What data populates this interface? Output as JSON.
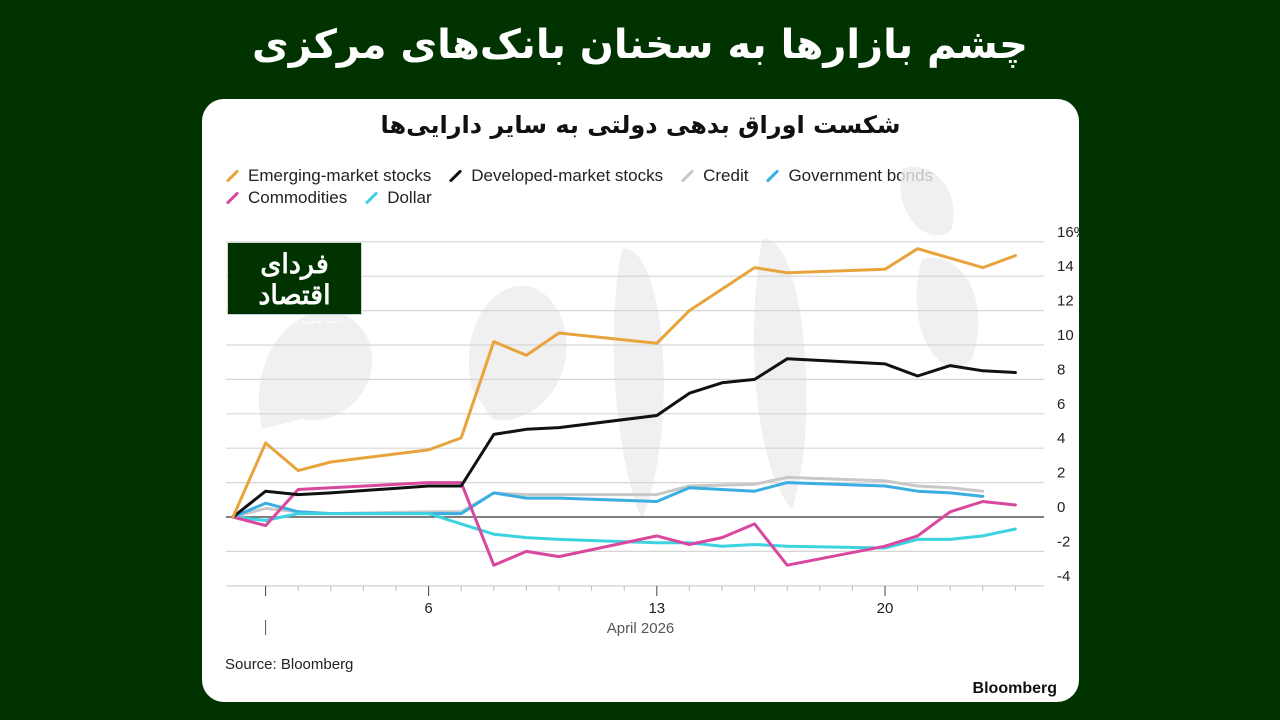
{
  "page": {
    "headline": "چشم بازارها به سخنان بانک‌های مرکزی",
    "background_color": "#003300"
  },
  "card": {
    "title": "شکست اوراق بدهی دولتی به سایر دارایی‌ها",
    "source": "Source: Bloomberg",
    "brand": "Bloomberg",
    "logo": {
      "main": "فردای اقتصاد",
      "sub": "رسانه تصویری روندهای اقتصادی"
    }
  },
  "legend": [
    {
      "label": "Emerging-market stocks",
      "color": "#E8A33D"
    },
    {
      "label": "Developed-market stocks",
      "color": "#111111"
    },
    {
      "label": "Credit",
      "color": "#C8C8C8"
    },
    {
      "label": "Government bonds",
      "color": "#3AAEE0"
    },
    {
      "label": "Commodities",
      "color": "#D9479F"
    },
    {
      "label": "Dollar",
      "color": "#3DD2E0"
    }
  ],
  "chart_data": {
    "type": "line",
    "title": "شکست اوراق بدهی دولتی به سایر دارایی‌ها",
    "xlabel": "April 2026",
    "ylabel": "%",
    "ylim": [
      -5,
      16
    ],
    "yticks": [
      "16%",
      "14",
      "12",
      "10",
      "8",
      "6",
      "4",
      "2",
      "0",
      "-2",
      "-4"
    ],
    "xticks": [
      "6",
      "13",
      "20"
    ],
    "x_tick_days": [
      6,
      13,
      20
    ],
    "grid": true,
    "legend_position": "top",
    "x": [
      0,
      1,
      2,
      3,
      6,
      7,
      8,
      9,
      10,
      13,
      14,
      15,
      16,
      17,
      20,
      21,
      22,
      23,
      24
    ],
    "series": [
      {
        "name": "Emerging-market stocks",
        "color": "#E8A33D",
        "points": [
          [
            0,
            0
          ],
          [
            1,
            4.3
          ],
          [
            2,
            2.7
          ],
          [
            3,
            3.2
          ],
          [
            6,
            3.9
          ],
          [
            7,
            4.6
          ],
          [
            8,
            10.2
          ],
          [
            9,
            9.4
          ],
          [
            10,
            10.7
          ],
          [
            13,
            10.1
          ],
          [
            14,
            12.0
          ],
          [
            16,
            14.5
          ],
          [
            17,
            14.2
          ],
          [
            20,
            14.4
          ],
          [
            21,
            15.6
          ],
          [
            23,
            14.5
          ],
          [
            24,
            15.2
          ]
        ]
      },
      {
        "name": "Developed-market stocks",
        "color": "#111111",
        "points": [
          [
            0,
            0
          ],
          [
            1,
            1.5
          ],
          [
            2,
            1.3
          ],
          [
            3,
            1.4
          ],
          [
            6,
            1.8
          ],
          [
            7,
            1.8
          ],
          [
            8,
            4.8
          ],
          [
            9,
            5.1
          ],
          [
            10,
            5.2
          ],
          [
            13,
            5.9
          ],
          [
            14,
            7.2
          ],
          [
            15,
            7.8
          ],
          [
            16,
            8.0
          ],
          [
            17,
            9.2
          ],
          [
            20,
            8.9
          ],
          [
            21,
            8.2
          ],
          [
            22,
            8.8
          ],
          [
            23,
            8.5
          ],
          [
            24,
            8.4
          ]
        ]
      },
      {
        "name": "Credit",
        "color": "#C8C8C8",
        "points": [
          [
            0,
            0
          ],
          [
            1,
            0.5
          ],
          [
            2,
            0.3
          ],
          [
            3,
            0.2
          ],
          [
            6,
            0.3
          ],
          [
            7,
            0.3
          ],
          [
            8,
            1.4
          ],
          [
            9,
            1.3
          ],
          [
            10,
            1.3
          ],
          [
            13,
            1.3
          ],
          [
            14,
            1.8
          ],
          [
            16,
            1.9
          ],
          [
            17,
            2.3
          ],
          [
            20,
            2.1
          ],
          [
            21,
            1.8
          ],
          [
            22,
            1.7
          ],
          [
            23,
            1.5
          ]
        ]
      },
      {
        "name": "Government bonds",
        "color": "#3AAEE0",
        "points": [
          [
            0,
            0
          ],
          [
            1,
            0.8
          ],
          [
            2,
            0.3
          ],
          [
            3,
            0.2
          ],
          [
            6,
            0.2
          ],
          [
            7,
            0.2
          ],
          [
            8,
            1.4
          ],
          [
            9,
            1.1
          ],
          [
            10,
            1.1
          ],
          [
            13,
            0.9
          ],
          [
            14,
            1.7
          ],
          [
            16,
            1.5
          ],
          [
            17,
            2.0
          ],
          [
            20,
            1.8
          ],
          [
            21,
            1.5
          ],
          [
            22,
            1.4
          ],
          [
            23,
            1.2
          ]
        ]
      },
      {
        "name": "Commodities",
        "color": "#D9479F",
        "points": [
          [
            0,
            0
          ],
          [
            1,
            -0.5
          ],
          [
            2,
            1.6
          ],
          [
            3,
            1.7
          ],
          [
            6,
            2.0
          ],
          [
            7,
            2.0
          ],
          [
            8,
            -2.8
          ],
          [
            9,
            -2.0
          ],
          [
            10,
            -2.3
          ],
          [
            13,
            -1.1
          ],
          [
            14,
            -1.6
          ],
          [
            15,
            -1.2
          ],
          [
            16,
            -0.4
          ],
          [
            17,
            -2.8
          ],
          [
            20,
            -1.7
          ],
          [
            21,
            -1.1
          ],
          [
            22,
            0.3
          ],
          [
            23,
            0.9
          ],
          [
            24,
            0.7
          ]
        ]
      },
      {
        "name": "Dollar",
        "color": "#3DD2E0",
        "points": [
          [
            0,
            0
          ],
          [
            1,
            -0.2
          ],
          [
            2,
            0.2
          ],
          [
            3,
            0.2
          ],
          [
            6,
            0.2
          ],
          [
            7,
            -0.4
          ],
          [
            8,
            -1.0
          ],
          [
            9,
            -1.2
          ],
          [
            10,
            -1.3
          ],
          [
            13,
            -1.5
          ],
          [
            14,
            -1.5
          ],
          [
            15,
            -1.7
          ],
          [
            16,
            -1.6
          ],
          [
            17,
            -1.7
          ],
          [
            20,
            -1.8
          ],
          [
            21,
            -1.3
          ],
          [
            22,
            -1.3
          ],
          [
            23,
            -1.1
          ],
          [
            24,
            -0.7
          ]
        ]
      }
    ],
    "source": "Source: Bloomberg"
  }
}
